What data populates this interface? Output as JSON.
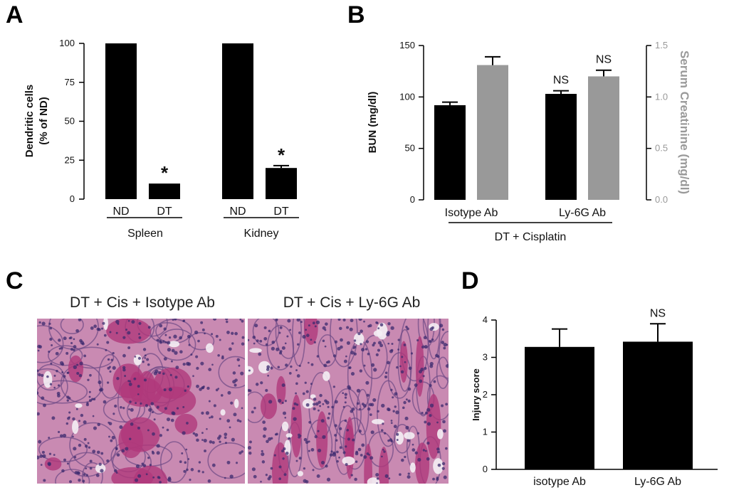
{
  "panels": {
    "A": {
      "letter": "A",
      "ylabel_line1": "Dendritic cells",
      "ylabel_line2": "(% of ND)",
      "y_ticks": [
        "0",
        "25",
        "50",
        "75",
        "100"
      ],
      "bar_labels": [
        "ND",
        "DT",
        "ND",
        "DT"
      ],
      "group_labels": [
        "Spleen",
        "Kidney"
      ],
      "asterisk": "*"
    },
    "B": {
      "letter": "B",
      "ylabel_left": "BUN (mg/dl)",
      "ylabel_right": "Serum Creatinine (mg/dl)",
      "y_ticks_left": [
        "0",
        "50",
        "100",
        "150"
      ],
      "y_ticks_right": [
        "0.0",
        "0.5",
        "1.0",
        "1.5"
      ],
      "group_labels": [
        "Isotype Ab",
        "Ly-6G Ab"
      ],
      "xlabel": "DT + Cisplatin",
      "ns": "NS"
    },
    "C": {
      "letter": "C",
      "caption_left": "DT + Cis + Isotype Ab",
      "caption_right": "DT + Cis + Ly-6G Ab"
    },
    "D": {
      "letter": "D",
      "ylabel": "Injury score",
      "y_ticks": [
        "0",
        "1",
        "2",
        "3",
        "4"
      ],
      "categories": [
        "isotype Ab",
        "Ly-6G Ab"
      ],
      "ns": "NS"
    }
  },
  "colors": {
    "black_bar": "#000000",
    "gray_bar": "#999999",
    "right_axis": "#999999",
    "tissue_base": "#c98ab2",
    "tissue_dark": "#b0387a",
    "nuclei": "#3b2a6e"
  },
  "chart_data": [
    {
      "type": "bar",
      "panel": "A",
      "categories": [
        "ND",
        "DT",
        "ND",
        "DT"
      ],
      "groups": [
        "Spleen",
        "Spleen",
        "Kidney",
        "Kidney"
      ],
      "values": [
        100,
        10,
        100,
        20
      ],
      "errors": [
        0,
        0,
        0,
        1.5
      ],
      "ylabel": "Dendritic cells (% of ND)",
      "ylim": [
        0,
        100
      ],
      "significant": [
        false,
        true,
        false,
        true
      ]
    },
    {
      "type": "bar",
      "panel": "B",
      "categories": [
        "Isotype Ab",
        "Ly-6G Ab"
      ],
      "xlabel": "DT + Cisplatin",
      "series": [
        {
          "name": "BUN (mg/dl)",
          "axis": "left",
          "values": [
            92,
            103
          ],
          "errors": [
            3,
            3
          ],
          "color": "#000000"
        },
        {
          "name": "Serum Creatinine (mg/dl)",
          "axis": "right",
          "values": [
            1.31,
            1.2
          ],
          "errors": [
            0.08,
            0.06
          ],
          "color": "#999999"
        }
      ],
      "ylim_left": [
        0,
        150
      ],
      "ylim_right": [
        0,
        1.5
      ],
      "annotations": [
        {
          "category": "Ly-6G Ab",
          "series": "BUN (mg/dl)",
          "text": "NS"
        },
        {
          "category": "Ly-6G Ab",
          "series": "Serum Creatinine (mg/dl)",
          "text": "NS"
        }
      ]
    },
    {
      "type": "bar",
      "panel": "D",
      "categories": [
        "isotype Ab",
        "Ly-6G Ab"
      ],
      "values": [
        3.28,
        3.42
      ],
      "errors": [
        0.48,
        0.48
      ],
      "ylabel": "Injury score",
      "ylim": [
        0,
        4
      ],
      "annotations": [
        {
          "category": "Ly-6G Ab",
          "text": "NS"
        }
      ]
    }
  ]
}
